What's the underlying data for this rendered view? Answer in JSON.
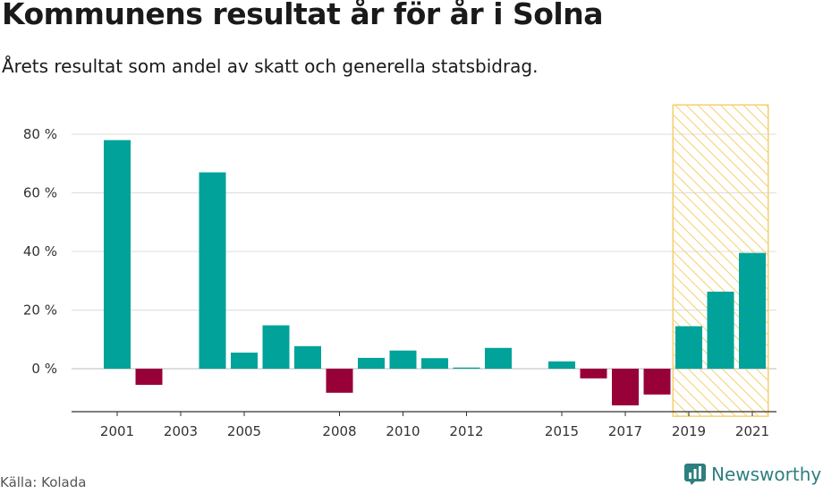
{
  "title": "Kommunens resultat år för år i Solna",
  "subtitle": "Årets resultat som andel av skatt och generella statsbidrag.",
  "source": "Källa: Kolada",
  "brand": {
    "name": "Newsworthy",
    "icon": "newsworthy-logo-icon",
    "color": "#2e7f7f"
  },
  "colors": {
    "positive": "#00a299",
    "negative": "#980038",
    "highlight_stroke": "#f5cf6e",
    "grid": "#dddddd"
  },
  "chart_data": {
    "type": "bar",
    "x": [
      2001,
      2002,
      2003,
      2004,
      2005,
      2006,
      2007,
      2008,
      2009,
      2010,
      2011,
      2012,
      2013,
      2014,
      2015,
      2016,
      2017,
      2018,
      2019,
      2020,
      2021
    ],
    "values": [
      78,
      -5.5,
      null,
      67,
      5.5,
      14.8,
      7.7,
      -8.2,
      3.7,
      6.2,
      3.6,
      0.4,
      7.1,
      null,
      2.5,
      -3.3,
      -12.5,
      -8.8,
      14.5,
      26.3,
      39.5
    ],
    "x_tick_labels": [
      "2001",
      "2003",
      "2005",
      "2008",
      "2010",
      "2012",
      "2015",
      "2017",
      "2019",
      "2021"
    ],
    "y_tick_labels": [
      "0 %",
      "20 %",
      "40 %",
      "60 %",
      "80 %"
    ],
    "y_ticks": [
      0,
      20,
      40,
      60,
      80
    ],
    "ylim": [
      -15,
      90
    ],
    "highlight_range": [
      2019,
      2021
    ],
    "grid": true
  }
}
